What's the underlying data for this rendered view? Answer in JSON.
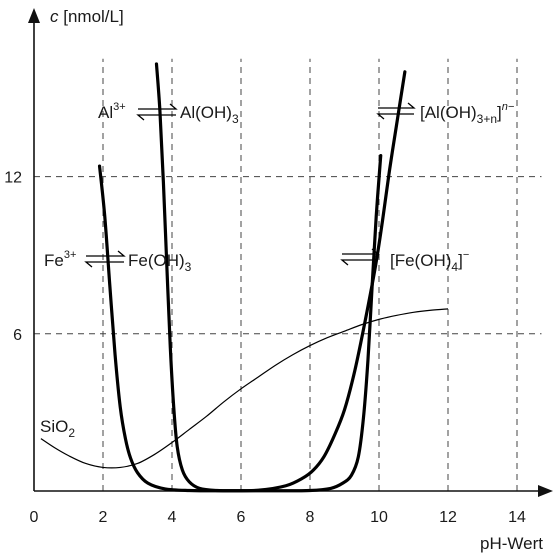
{
  "chart_data": {
    "type": "line",
    "ylabel_symbol": "c",
    "ylabel_unit": "[nmol/L]",
    "xlabel": "pH-Wert",
    "xlim": [
      0,
      15
    ],
    "ylim": [
      0,
      16.5
    ],
    "xticks": [
      "0",
      "2",
      "4",
      "6",
      "8",
      "10",
      "12",
      "14"
    ],
    "yticks": [
      "6",
      "12"
    ],
    "grid": true,
    "series": [
      {
        "name": "Fe",
        "style": "bold",
        "x": [
          1.9,
          2.05,
          2.2,
          2.35,
          2.5,
          2.65,
          2.8,
          3.0,
          3.3,
          3.8,
          4.5,
          5.5,
          6.5,
          7.3,
          7.8,
          8.1,
          8.4,
          8.7,
          9.0,
          9.3,
          9.6,
          9.9,
          10.1,
          10.3,
          10.5,
          10.75
        ],
        "y": [
          12.4,
          10.5,
          7.8,
          5.2,
          3.2,
          2.0,
          1.25,
          0.7,
          0.3,
          0.08,
          0.02,
          0.01,
          0.03,
          0.2,
          0.5,
          0.8,
          1.3,
          2.1,
          3.1,
          4.6,
          6.5,
          8.6,
          10.3,
          12.2,
          13.9,
          16.0
        ]
      },
      {
        "name": "Al",
        "style": "bold",
        "x": [
          3.55,
          3.65,
          3.75,
          3.85,
          3.95,
          4.05,
          4.15,
          4.3,
          4.5,
          4.8,
          5.3,
          6.0,
          7.0,
          8.0,
          8.6,
          8.95,
          9.2,
          9.4,
          9.55,
          9.68,
          9.8,
          9.92,
          10.05
        ],
        "y": [
          16.3,
          14.5,
          11.8,
          8.6,
          5.5,
          3.2,
          1.7,
          0.8,
          0.35,
          0.1,
          0.02,
          0.01,
          0.01,
          0.02,
          0.1,
          0.3,
          0.6,
          1.3,
          2.8,
          5.0,
          7.8,
          10.5,
          12.8
        ]
      },
      {
        "name": "SiO2",
        "style": "thin",
        "x": [
          0.2,
          0.6,
          1.0,
          1.5,
          2.0,
          2.5,
          3.0,
          3.5,
          4.0,
          4.5,
          5.0,
          5.5,
          6.0,
          6.5,
          7.0,
          7.5,
          8.0,
          8.5,
          9.0,
          9.5,
          10.0,
          10.5,
          11.0,
          11.5,
          12.0
        ],
        "y": [
          2.0,
          1.65,
          1.35,
          1.05,
          0.9,
          0.9,
          1.05,
          1.4,
          1.85,
          2.35,
          2.85,
          3.4,
          3.9,
          4.35,
          4.8,
          5.2,
          5.55,
          5.85,
          6.1,
          6.35,
          6.55,
          6.7,
          6.82,
          6.9,
          6.95
        ]
      }
    ],
    "annotations": {
      "al_left": {
        "from_base": "Al",
        "from_sup": "3+",
        "to": "Al(OH)",
        "to_sub": "3"
      },
      "fe_left": {
        "from_base": "Fe",
        "from_sup": "3+",
        "to": "Fe(OH)",
        "to_sub": "3"
      },
      "al_right": {
        "to": "[Al(OH)",
        "to_sub": "3+n",
        "to_close": "]",
        "to_sup": "n−"
      },
      "fe_right": {
        "to": "[Fe(OH)",
        "to_sub": "4",
        "to_close": "]",
        "to_sup": "−"
      },
      "sio2": {
        "base": "SiO",
        "sub": "2"
      }
    }
  }
}
